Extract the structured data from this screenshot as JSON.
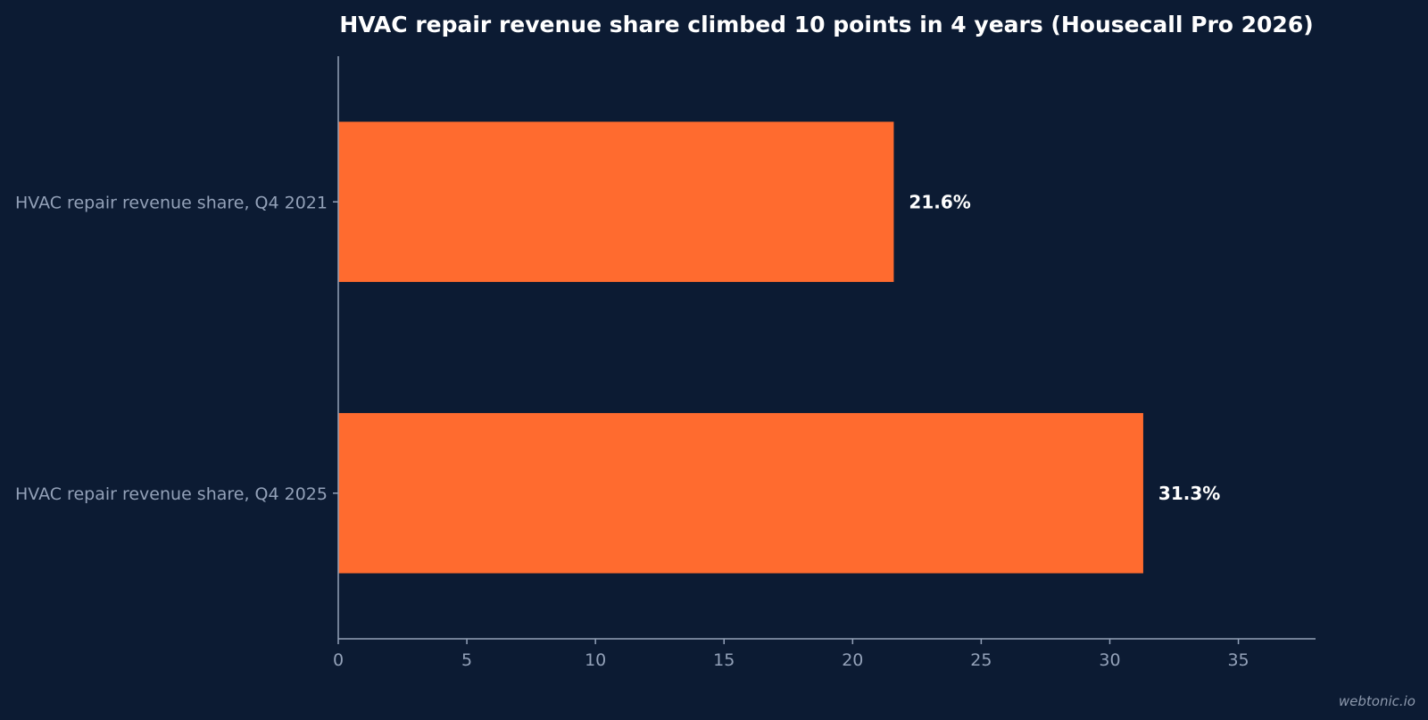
{
  "chart_data": {
    "type": "bar",
    "orientation": "horizontal",
    "title": "HVAC repair revenue share climbed 10 points in 4 years (Housecall Pro 2026)",
    "categories": [
      "HVAC repair revenue share, Q4 2021",
      "HVAC repair revenue share, Q4 2025"
    ],
    "values": [
      21.6,
      31.3
    ],
    "data_labels": [
      "21.6%",
      "31.3%"
    ],
    "xlabel": "",
    "ylabel": "",
    "xlim": [
      0,
      38
    ],
    "xticks": [
      0,
      5,
      10,
      15,
      20,
      25,
      30,
      35
    ],
    "grid": false,
    "legend": "none",
    "bar_color": "#ff6b2f"
  },
  "watermark": "webtonic.io",
  "colors": {
    "background": "#0c1b33",
    "bar": "#ff6b2f",
    "axis": "#93a1b8",
    "text": "#ffffff"
  }
}
